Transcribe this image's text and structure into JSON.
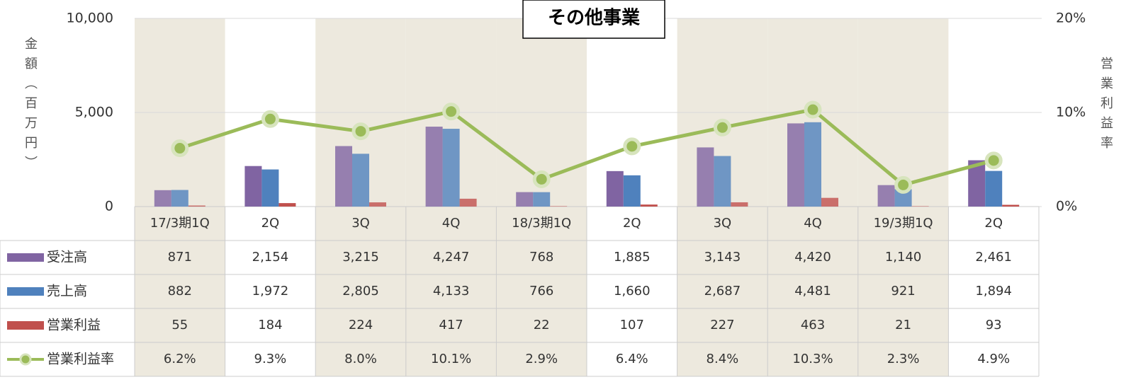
{
  "chart_data": {
    "type": "bar",
    "title": "その他事業",
    "y_label": "金額（百万円）",
    "y2_label": "営業利益率",
    "categories": [
      "17/3期1Q",
      "2Q",
      "3Q",
      "4Q",
      "18/3期1Q",
      "2Q",
      "3Q",
      "4Q",
      "19/3期1Q",
      "2Q"
    ],
    "ylim": [
      0,
      10000
    ],
    "yticks": [
      0,
      {
        "value": 5000,
        "label": "5,000"
      },
      {
        "value": 10000,
        "label": "10,000"
      }
    ],
    "y2lim": [
      0,
      20
    ],
    "y2ticks": [
      {
        "value": 0,
        "label": "0%"
      },
      {
        "value": 10,
        "label": "10%"
      },
      {
        "value": 20,
        "label": "20%"
      }
    ],
    "grid": true,
    "series": [
      {
        "name": "受注高",
        "color": "#8064a2",
        "values": [
          871,
          2154,
          3215,
          4247,
          768,
          1885,
          3143,
          4420,
          1140,
          2461
        ],
        "value_labels": [
          "871",
          "2,154",
          "3,215",
          "4,247",
          "768",
          "1,885",
          "3,143",
          "4,420",
          "1,140",
          "2,461"
        ]
      },
      {
        "name": "売上高",
        "color": "#4f81bd",
        "values": [
          882,
          1972,
          2805,
          4133,
          766,
          1660,
          2687,
          4481,
          921,
          1894
        ],
        "value_labels": [
          "882",
          "1,972",
          "2,805",
          "4,133",
          "766",
          "1,660",
          "2,687",
          "4,481",
          "921",
          "1,894"
        ]
      },
      {
        "name": "営業利益",
        "color": "#c0504d",
        "values": [
          55,
          184,
          224,
          417,
          22,
          107,
          227,
          463,
          21,
          93
        ]
      },
      {
        "name": "営業利益率",
        "type": "line",
        "axis": "y2",
        "color": "#9bbb59",
        "values": [
          6.2,
          9.3,
          8.0,
          10.1,
          2.9,
          6.4,
          8.4,
          10.3,
          2.3,
          4.9
        ],
        "value_labels": [
          "6.2%",
          "9.3%",
          "8.0%",
          "10.1%",
          "2.9%",
          "6.4%",
          "8.4%",
          "10.3%",
          "2.3%",
          "4.9%"
        ]
      }
    ]
  }
}
